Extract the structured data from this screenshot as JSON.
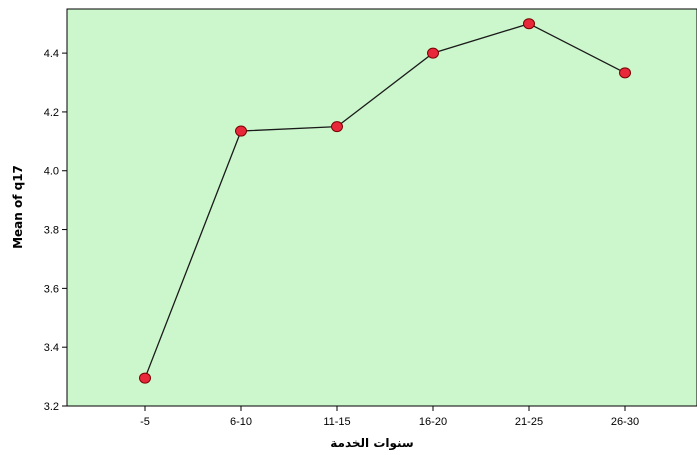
{
  "chart_data": {
    "type": "line",
    "title": "",
    "xlabel": "سنوات الخدمة",
    "ylabel": "Mean of q17",
    "categories": [
      "-5",
      "6-10",
      "11-15",
      "16-20",
      "21-25",
      "26-30"
    ],
    "series": [
      {
        "values": [
          3.295,
          4.135,
          4.15,
          4.4,
          4.5,
          4.333
        ]
      }
    ],
    "ylim": [
      3.2,
      4.55
    ],
    "yticks": [
      "3.2",
      "3.4",
      "3.6",
      "3.8",
      "4.0",
      "4.2",
      "4.4"
    ],
    "grid": false,
    "legend": "none",
    "colors": {
      "plot_background": "#ccf7cc",
      "line": "#1a1a1a",
      "marker_fill": "#e8283a",
      "marker_stroke": "#7a0000"
    }
  }
}
